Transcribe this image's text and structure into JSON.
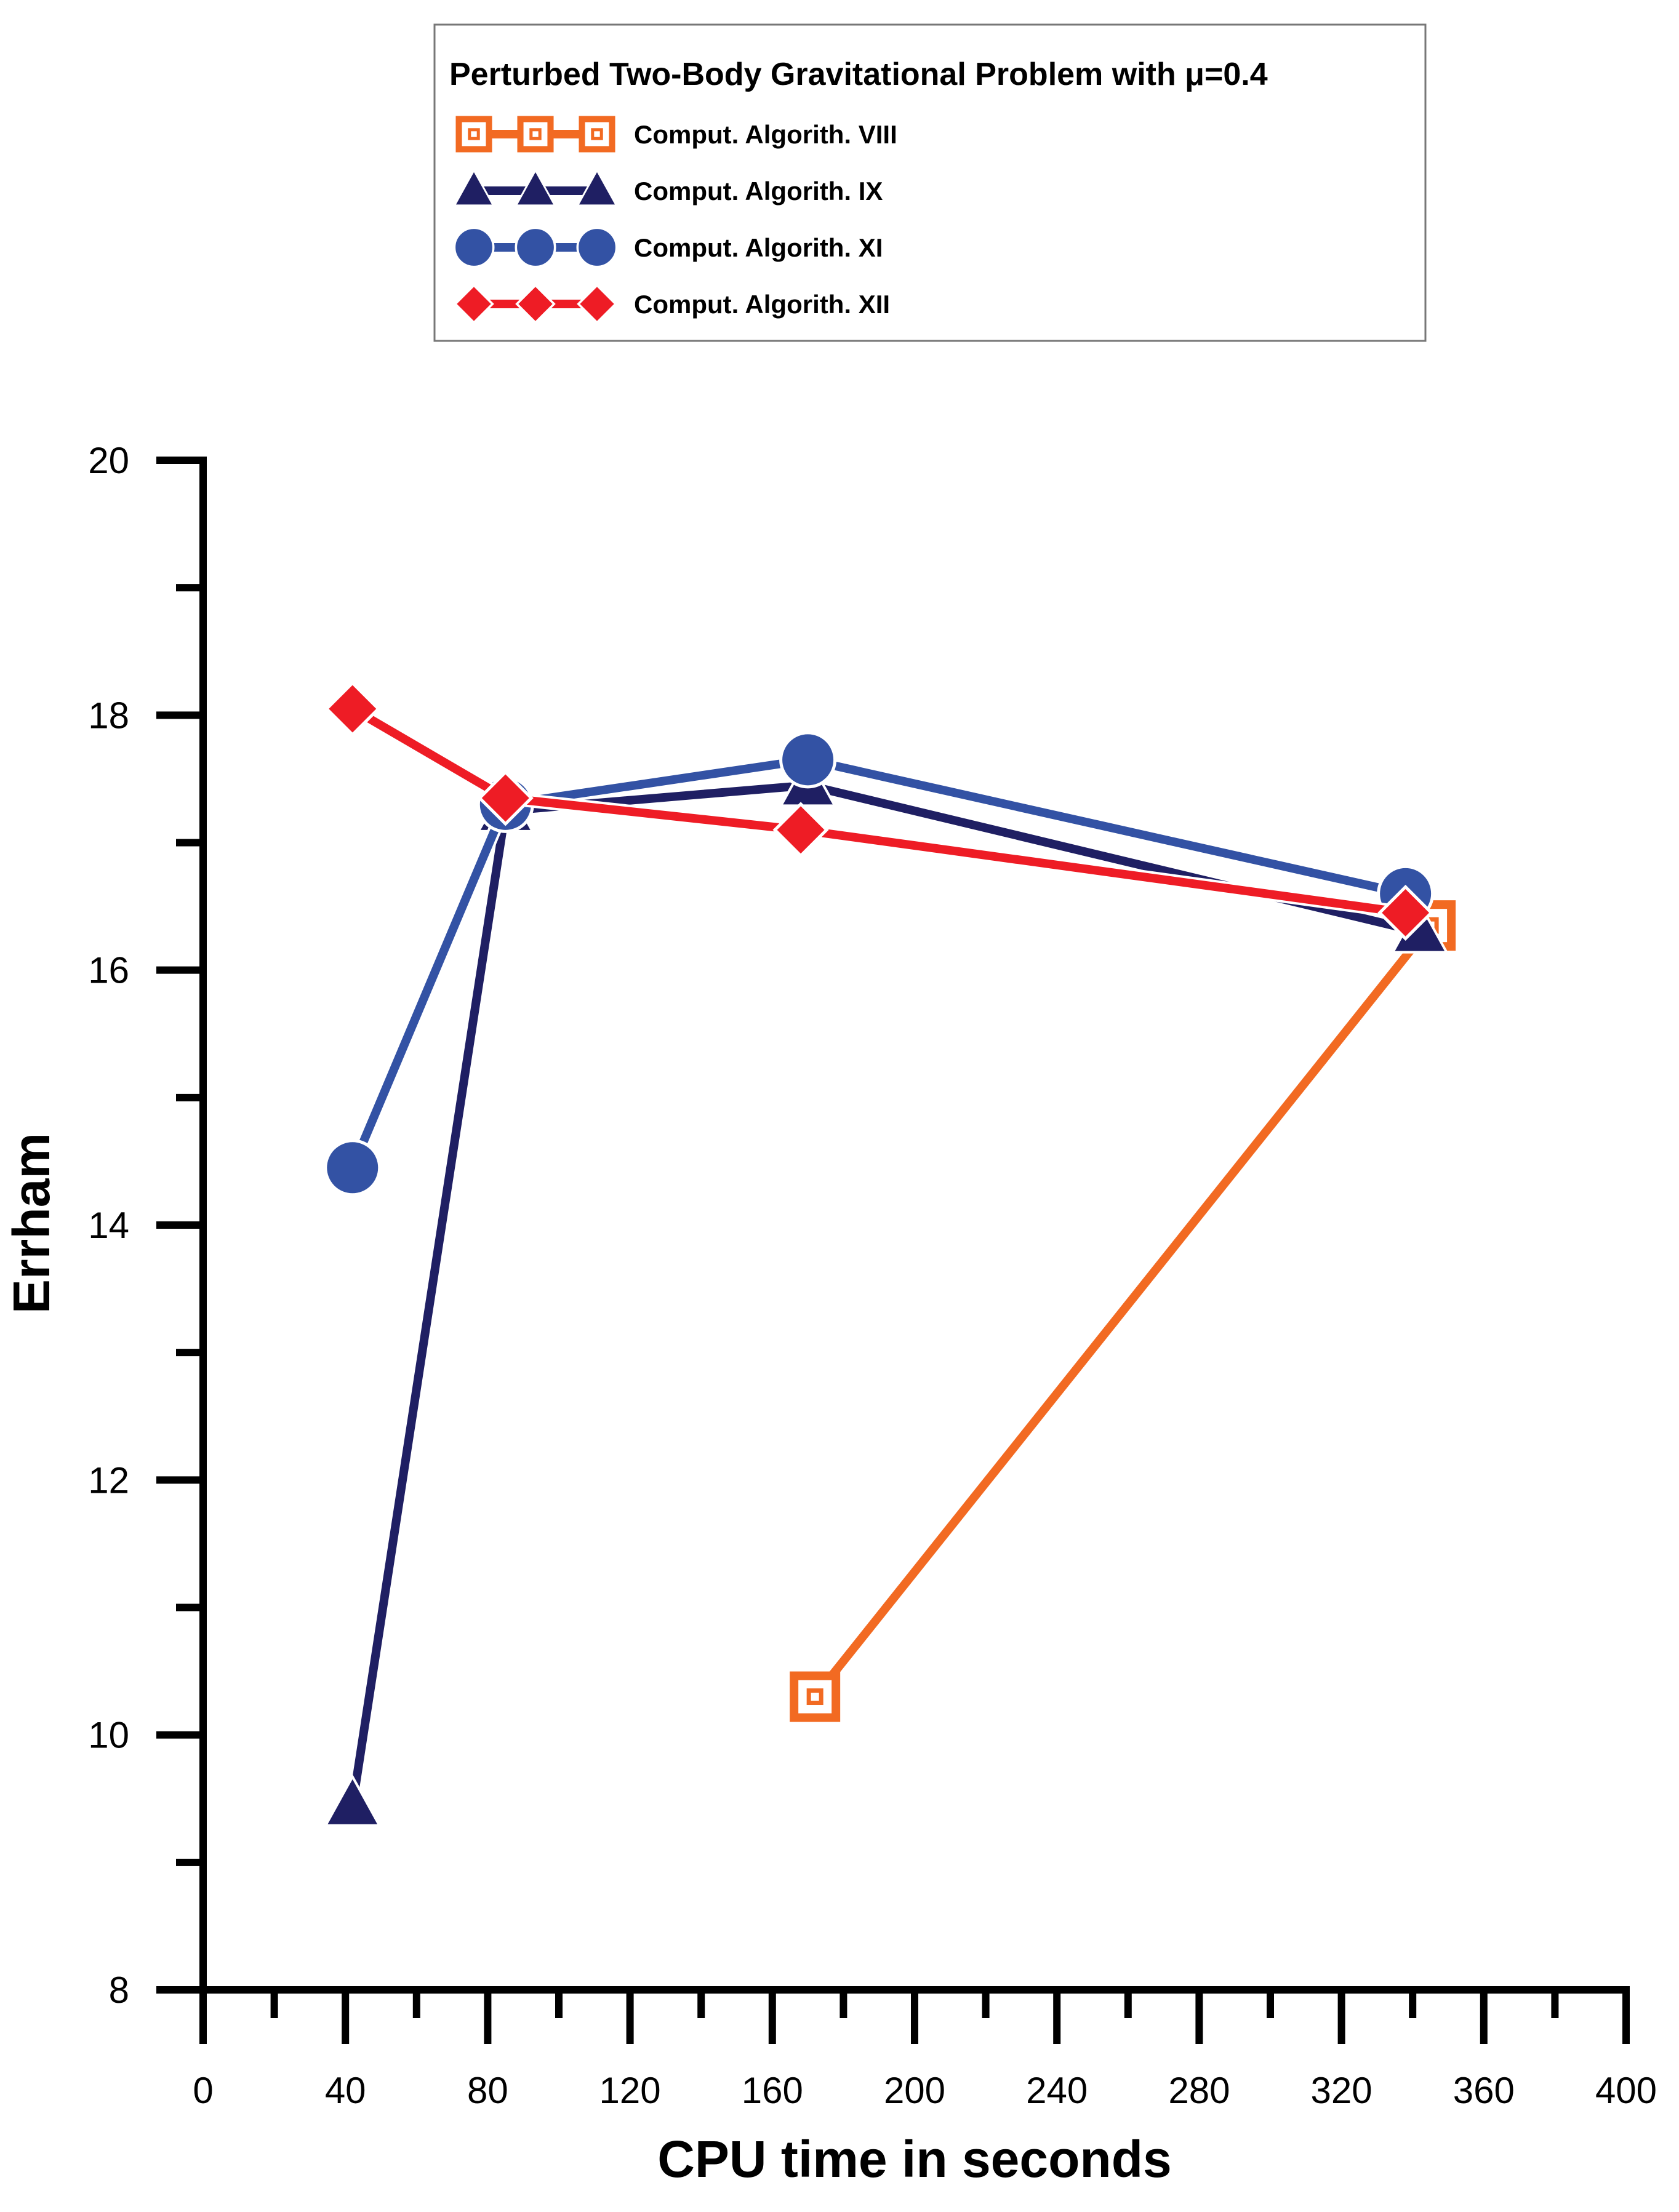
{
  "chart_data": {
    "type": "line",
    "title": "",
    "legend": {
      "title": "Perturbed Two-Body Gravitational Problem with μ=0.4",
      "placement": "top-center"
    },
    "xlabel": "CPU time in seconds",
    "ylabel": "Errham",
    "xlim": [
      0,
      400
    ],
    "ylim": [
      8,
      20
    ],
    "xticks": [
      0,
      40,
      80,
      120,
      160,
      200,
      240,
      280,
      320,
      360,
      400
    ],
    "xtick_labels": [
      "0",
      "40",
      "80",
      "120",
      "160",
      "200",
      "240",
      "280",
      "320",
      "360",
      "400"
    ],
    "yticks": [
      8,
      10,
      12,
      14,
      16,
      18,
      20
    ],
    "ytick_labels": [
      "8",
      "10",
      "12",
      "14",
      "16",
      "18",
      "20"
    ],
    "grid": false,
    "series": [
      {
        "name": "Comput. Algorith. VIII",
        "color": "#F26A22",
        "marker": "square",
        "x": [
          172,
          345
        ],
        "y": [
          10.3,
          16.35
        ]
      },
      {
        "name": "Comput. Algorith. IX",
        "color": "#1F1F63",
        "marker": "triangle",
        "x": [
          42,
          85,
          170,
          342
        ],
        "y": [
          9.45,
          17.25,
          17.45,
          16.3
        ]
      },
      {
        "name": "Comput. Algorith. XI",
        "color": "#3352A4",
        "marker": "circle",
        "x": [
          42,
          85,
          170,
          338
        ],
        "y": [
          14.45,
          17.3,
          17.65,
          16.6
        ]
      },
      {
        "name": "Comput. Algorith. XII",
        "color": "#EE1C25",
        "marker": "diamond",
        "x": [
          42,
          85,
          168,
          338
        ],
        "y": [
          18.05,
          17.35,
          17.1,
          16.45
        ]
      }
    ]
  }
}
